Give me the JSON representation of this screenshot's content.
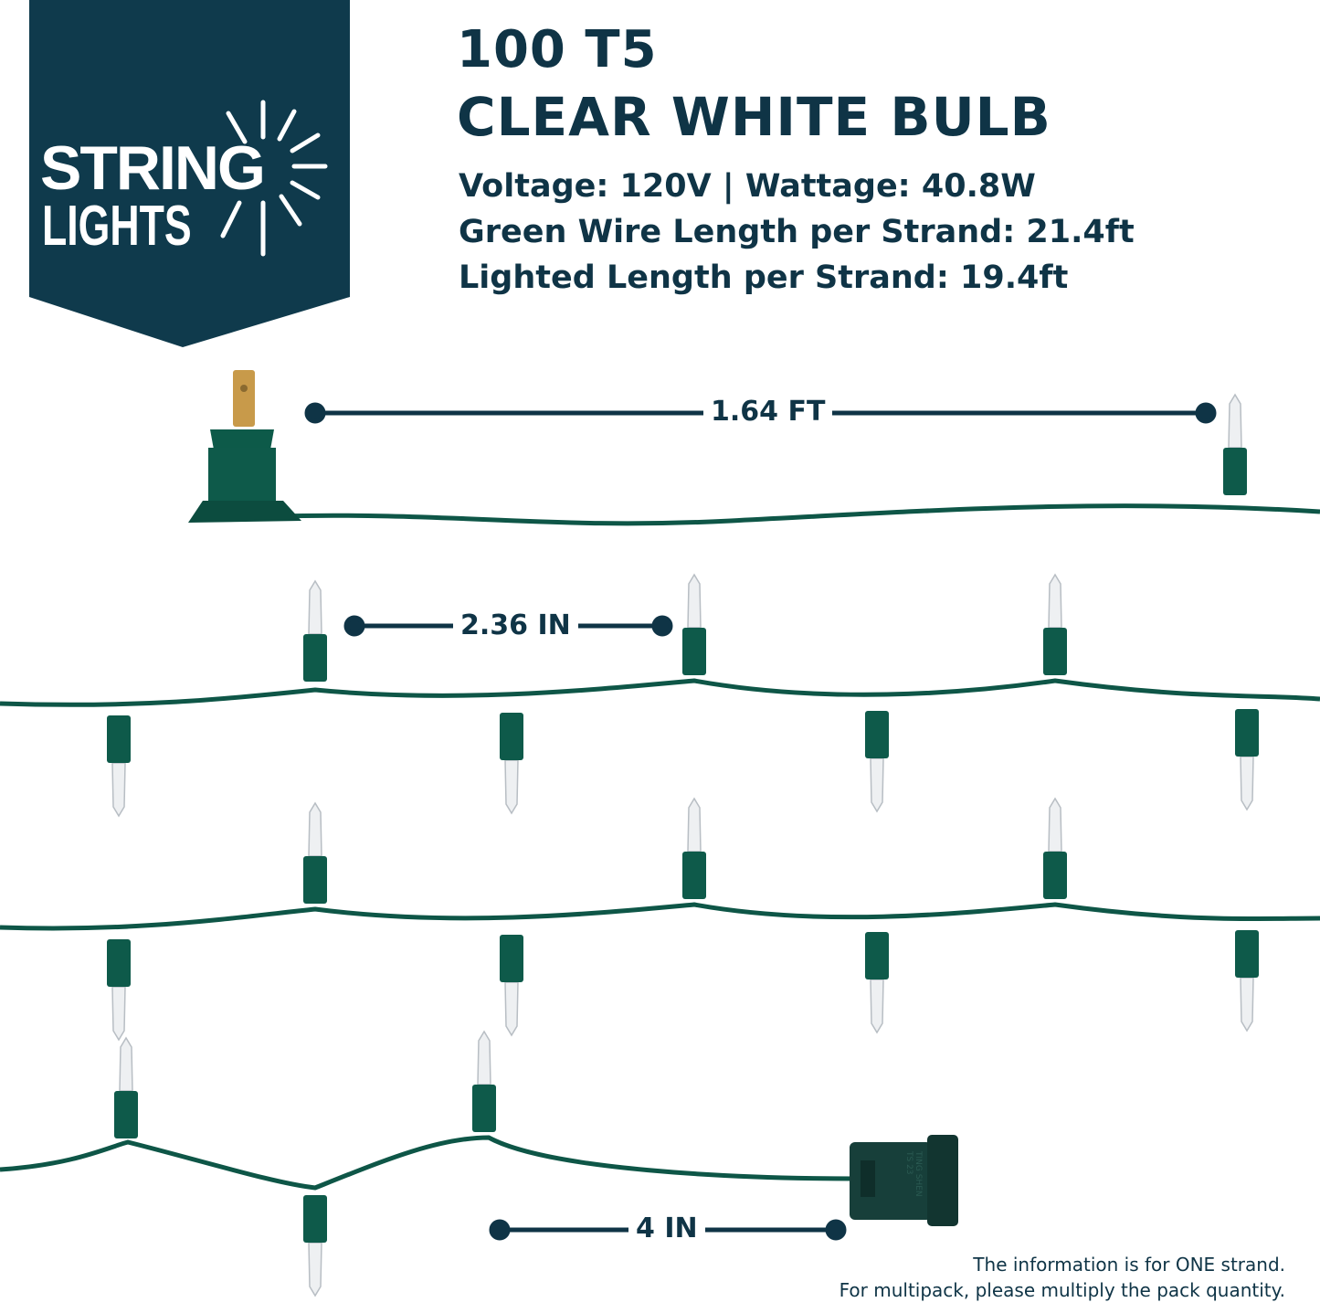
{
  "brand": {
    "logo_line1": "STRING",
    "logo_line2": "LIGHTS",
    "banner_color": "#0f3a4c"
  },
  "product": {
    "title_line1": "100 T5",
    "title_line2": "CLEAR WHITE BULB",
    "specs": [
      "Voltage: 120V | Wattage: 40.8W",
      "Green Wire Length per Strand: 21.4ft",
      "Lighted Length per Strand: 19.4ft"
    ]
  },
  "dimensions": {
    "lead_length": "1.64 FT",
    "bulb_spacing": "2.36 IN",
    "end_length": "4 IN"
  },
  "connector_marking": [
    "TING SHEN",
    "TS 23"
  ],
  "notes": [
    "The information is for ONE strand.",
    "For multipack, please multiply the pack quantity."
  ],
  "colors": {
    "text": "#0f3446",
    "wire": "#0e5647",
    "plug_prong": "#c89a4a"
  }
}
